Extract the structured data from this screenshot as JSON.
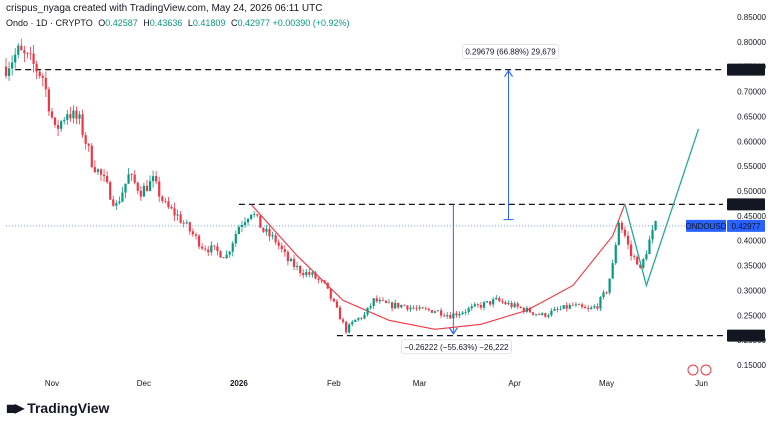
{
  "header": {
    "text": "crispus_nyaga created with TradingView.com, May 24, 2026 06:11 UTC"
  },
  "legend": {
    "symbol": "Ondo · 1D · CRYPTO",
    "open_label": "O",
    "open": "0.42587",
    "high_label": "H",
    "high": "0.43636",
    "low_label": "L",
    "low": "0.41809",
    "close_label": "C",
    "close": "0.42977",
    "change": "+0.00390 (+0.92%)"
  },
  "brand": {
    "name": "TradingView",
    "logo_icon": "tradingview-logo-icon"
  },
  "colors": {
    "up": "#089981",
    "down": "#f23645",
    "curve": "#f23645",
    "arrow": "#2962ff",
    "projection": "#22ab94",
    "price_label": "#2962ff"
  },
  "chart_data": {
    "type": "candlestick",
    "ylim": [
      0.13,
      0.86
    ],
    "y_ticks": [
      "0.85000",
      "0.80000",
      "0.75000",
      "0.70000",
      "0.65000",
      "0.60000",
      "0.55000",
      "0.50000",
      "0.45000",
      "0.40000",
      "0.35000",
      "0.30000",
      "0.25000",
      "0.20000",
      "0.15000"
    ],
    "x_ticks": [
      "Nov",
      "Dec",
      "2026",
      "Feb",
      "Mar",
      "Apr",
      "May",
      "Jun"
    ],
    "x_tick_days": [
      15,
      45,
      76,
      107,
      135,
      166,
      196,
      227
    ],
    "x_range_days": [
      0,
      234
    ],
    "price_levels": [
      {
        "value": 0.74407,
        "label": "0.74407"
      },
      {
        "value": 0.47311,
        "label": "0.47311"
      },
      {
        "value": 0.20914,
        "label": "0.20914"
      }
    ],
    "current_price": {
      "value": 0.42977,
      "label": "0.42977",
      "symbol": "ONDOUSD"
    },
    "measure_up": {
      "label": "0.29679 (66.88%) 29,679",
      "from": 0.4425,
      "to": 0.744,
      "day": 164
    },
    "measure_down": {
      "label": "−0.26222 (−55.63%) −26,222",
      "from": 0.4731,
      "to": 0.2109,
      "day": 146
    },
    "price_anchors": [
      [
        0,
        0.75
      ],
      [
        4,
        0.78
      ],
      [
        8,
        0.76
      ],
      [
        12,
        0.73
      ],
      [
        16,
        0.62
      ],
      [
        20,
        0.66
      ],
      [
        24,
        0.64
      ],
      [
        28,
        0.56
      ],
      [
        32,
        0.52
      ],
      [
        36,
        0.47
      ],
      [
        40,
        0.53
      ],
      [
        44,
        0.5
      ],
      [
        48,
        0.52
      ],
      [
        52,
        0.47
      ],
      [
        56,
        0.45
      ],
      [
        60,
        0.42
      ],
      [
        64,
        0.39
      ],
      [
        68,
        0.38
      ],
      [
        72,
        0.37
      ],
      [
        76,
        0.43
      ],
      [
        80,
        0.46
      ],
      [
        84,
        0.42
      ],
      [
        88,
        0.4
      ],
      [
        92,
        0.36
      ],
      [
        96,
        0.34
      ],
      [
        100,
        0.33
      ],
      [
        104,
        0.31
      ],
      [
        108,
        0.26
      ],
      [
        111,
        0.22
      ],
      [
        114,
        0.24
      ],
      [
        117,
        0.25
      ],
      [
        120,
        0.28
      ],
      [
        125,
        0.27
      ],
      [
        130,
        0.27
      ],
      [
        135,
        0.26
      ],
      [
        140,
        0.26
      ],
      [
        145,
        0.25
      ],
      [
        150,
        0.26
      ],
      [
        155,
        0.27
      ],
      [
        160,
        0.28
      ],
      [
        165,
        0.27
      ],
      [
        170,
        0.26
      ],
      [
        175,
        0.25
      ],
      [
        180,
        0.26
      ],
      [
        185,
        0.27
      ],
      [
        190,
        0.26
      ],
      [
        193,
        0.27
      ],
      [
        196,
        0.3
      ],
      [
        198,
        0.35
      ],
      [
        200,
        0.44
      ],
      [
        202,
        0.41
      ],
      [
        204,
        0.37
      ],
      [
        206,
        0.36
      ],
      [
        207,
        0.34
      ],
      [
        208,
        0.36
      ],
      [
        210,
        0.4
      ],
      [
        212,
        0.43
      ]
    ],
    "cup_curve": [
      [
        80,
        0.4731
      ],
      [
        95,
        0.37
      ],
      [
        110,
        0.28
      ],
      [
        125,
        0.24
      ],
      [
        140,
        0.222
      ],
      [
        155,
        0.232
      ],
      [
        170,
        0.26
      ],
      [
        185,
        0.31
      ],
      [
        198,
        0.41
      ],
      [
        202,
        0.474
      ]
    ],
    "projection_path": [
      [
        202,
        0.474
      ],
      [
        209,
        0.31
      ],
      [
        226,
        0.625
      ]
    ]
  }
}
